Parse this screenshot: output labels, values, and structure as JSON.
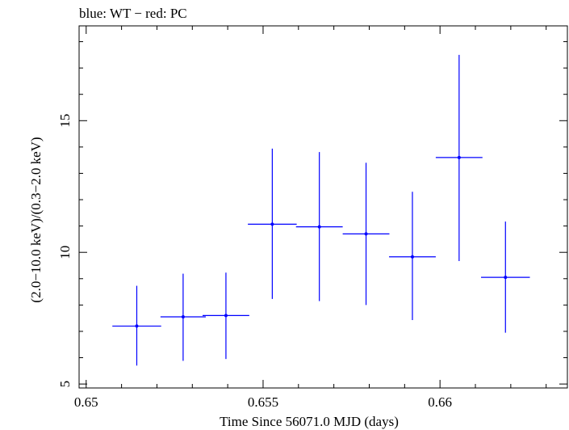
{
  "chart_data": {
    "type": "scatter",
    "title": "blue: WT − red: PC",
    "xlabel": "Time Since 56071.0 MJD (days)",
    "ylabel": "(2.0−10.0 keV)/(0.3−2.0 keV)",
    "xlim": [
      0.6498,
      0.6636
    ],
    "ylim": [
      4.85,
      18.6
    ],
    "x_ticks": [
      0.65,
      0.655,
      0.66
    ],
    "x_tick_labels": [
      "0.65",
      "0.655",
      "0.66"
    ],
    "y_ticks": [
      5,
      10,
      15
    ],
    "y_tick_labels": [
      "5",
      "10",
      "15"
    ],
    "grid": false,
    "series": [
      {
        "name": "WT",
        "color": "#0000ff",
        "points": [
          {
            "x": 0.65143,
            "xerr": 0.00069,
            "y": 7.2,
            "y_lo": 5.7,
            "y_hi": 8.73
          },
          {
            "x": 0.65274,
            "xerr": 0.00064,
            "y": 7.55,
            "y_lo": 5.88,
            "y_hi": 9.19
          },
          {
            "x": 0.65395,
            "xerr": 0.00066,
            "y": 7.6,
            "y_lo": 5.95,
            "y_hi": 9.23
          },
          {
            "x": 0.65526,
            "xerr": 0.00069,
            "y": 11.07,
            "y_lo": 8.23,
            "y_hi": 13.94
          },
          {
            "x": 0.65659,
            "xerr": 0.00066,
            "y": 10.97,
            "y_lo": 8.15,
            "y_hi": 13.81
          },
          {
            "x": 0.65791,
            "xerr": 0.00066,
            "y": 10.7,
            "y_lo": 8.0,
            "y_hi": 13.4
          },
          {
            "x": 0.65922,
            "xerr": 0.00066,
            "y": 9.83,
            "y_lo": 7.43,
            "y_hi": 12.3
          },
          {
            "x": 0.66054,
            "xerr": 0.00066,
            "y": 13.6,
            "y_lo": 9.67,
            "y_hi": 17.5
          },
          {
            "x": 0.66185,
            "xerr": 0.00069,
            "y": 9.05,
            "y_lo": 6.95,
            "y_hi": 11.17
          }
        ]
      }
    ]
  }
}
